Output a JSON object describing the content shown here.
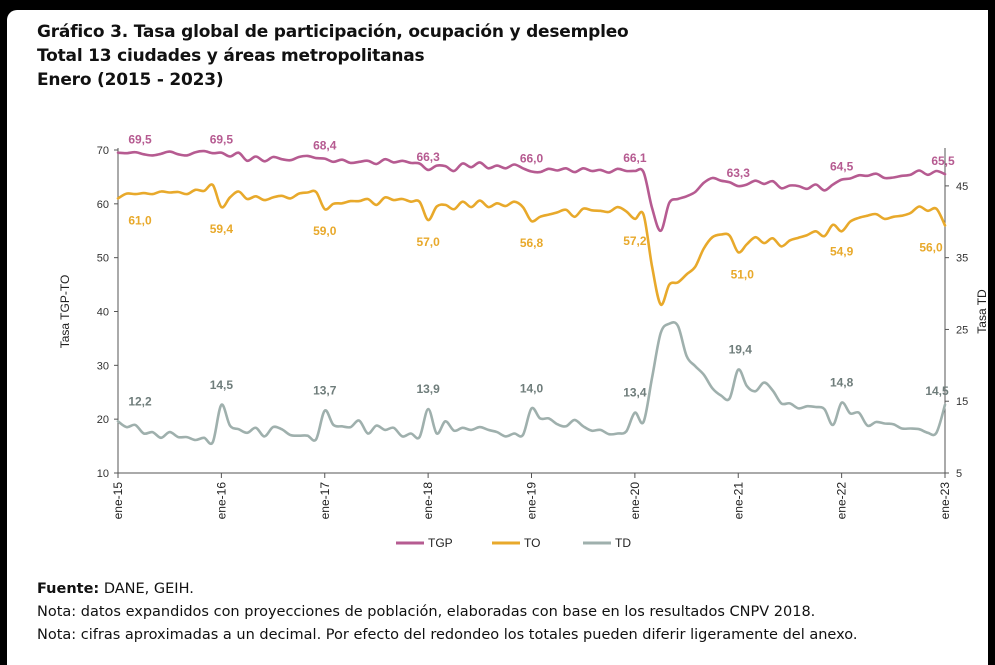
{
  "header": {
    "title_line1": "Gráfico 3. Tasa global de participación, ocupación y desempleo",
    "title_line2": "Total 13 ciudades y áreas metropolitanas",
    "title_line3": "Enero (2015 - 2023)"
  },
  "footer": {
    "source_label": "Fuente:",
    "source_value": " DANE, GEIH.",
    "note1": "Nota: datos expandidos con proyecciones de población, elaboradas con base en los resultados CNPV 2018.",
    "note2": "Nota: cifras aproximadas a un decimal. Por efecto del redondeo los totales pueden diferir ligeramente del anexo."
  },
  "colors": {
    "TGP": "#b65b91",
    "TO": "#e8a92b",
    "TD": "#9fb0ad"
  },
  "chart_data": {
    "type": "line",
    "x_categories": [
      "ene-15",
      "ene-16",
      "ene-17",
      "ene-18",
      "ene-19",
      "ene-20",
      "ene-21",
      "ene-22",
      "ene-23"
    ],
    "y_left_label": "Tasa TGP-TO",
    "y_left_lim": [
      10,
      70
    ],
    "y_left_ticks": [
      "10",
      "20",
      "30",
      "40",
      "50",
      "60",
      "70"
    ],
    "y_right_label": "Tasa TD",
    "y_right_lim": [
      5,
      50
    ],
    "y_right_ticks": [
      "5",
      "15",
      "25",
      "35",
      "45"
    ],
    "legend_position": "bottom",
    "series": [
      {
        "name": "TGP",
        "axis": "left",
        "values": [
          69.5,
          69.4,
          69.6,
          69.2,
          69.0,
          69.3,
          69.7,
          69.2,
          69.0,
          69.6,
          69.8,
          69.4,
          69.5,
          68.8,
          69.5,
          68.0,
          68.8,
          67.9,
          68.7,
          68.3,
          68.1,
          68.7,
          68.9,
          68.5,
          68.4,
          67.8,
          68.2,
          67.6,
          67.8,
          68.0,
          67.4,
          68.3,
          67.7,
          68.0,
          67.6,
          67.5,
          66.3,
          67.1,
          67.0,
          66.1,
          67.5,
          66.8,
          67.7,
          66.6,
          67.1,
          66.6,
          67.3,
          66.6,
          66.0,
          65.9,
          66.5,
          66.2,
          66.6,
          65.9,
          66.6,
          66.1,
          66.3,
          65.8,
          66.5,
          66.1,
          66.1,
          65.9,
          59.2,
          55.0,
          60.2,
          60.9,
          61.4,
          62.2,
          63.9,
          64.8,
          64.3,
          64.0,
          63.3,
          63.6,
          64.3,
          63.7,
          64.2,
          62.9,
          63.4,
          63.3,
          62.8,
          63.6,
          62.5,
          63.6,
          64.5,
          64.7,
          65.3,
          65.2,
          65.6,
          64.8,
          64.9,
          65.2,
          65.4,
          66.2,
          65.4,
          66.1,
          65.5
        ],
        "labels": [
          "69,5",
          "69,5",
          "68,4",
          "66,3",
          "66,0",
          "66,1",
          "63,3",
          "64,5",
          "65,5"
        ]
      },
      {
        "name": "TO",
        "axis": "left",
        "values": [
          61.0,
          61.9,
          61.8,
          62.0,
          61.8,
          62.3,
          62.1,
          62.2,
          61.8,
          62.6,
          62.4,
          63.5,
          59.4,
          61.2,
          62.3,
          60.9,
          61.4,
          60.7,
          61.2,
          61.5,
          61.0,
          61.9,
          62.1,
          62.2,
          59.0,
          60.0,
          60.1,
          60.5,
          60.5,
          60.9,
          59.8,
          61.2,
          60.7,
          60.9,
          60.4,
          60.4,
          57.0,
          59.5,
          59.8,
          59.0,
          60.4,
          59.4,
          60.6,
          59.4,
          60.1,
          59.6,
          60.4,
          59.4,
          56.8,
          57.6,
          58.0,
          58.4,
          58.9,
          57.6,
          59.1,
          58.8,
          58.7,
          58.5,
          59.4,
          58.6,
          57.2,
          58.0,
          48.3,
          41.3,
          45.0,
          45.4,
          46.9,
          48.3,
          51.7,
          53.8,
          54.3,
          54.1,
          51.0,
          52.5,
          53.8,
          52.7,
          53.6,
          52.1,
          53.2,
          53.7,
          54.2,
          54.9,
          54.0,
          56.1,
          54.9,
          56.7,
          57.4,
          57.8,
          58.1,
          57.2,
          57.6,
          57.8,
          58.3,
          59.5,
          58.7,
          59.1,
          56.0
        ],
        "labels": [
          "61,0",
          "59,4",
          "59,0",
          "57,0",
          "56,8",
          "57,2",
          "51,0",
          "54,9",
          "56,0"
        ]
      },
      {
        "name": "TD",
        "axis": "right",
        "values": [
          12.2,
          11.4,
          11.7,
          10.5,
          10.7,
          9.9,
          10.7,
          10.0,
          10.0,
          9.6,
          9.9,
          9.3,
          14.5,
          11.6,
          11.1,
          10.6,
          11.3,
          10.1,
          11.4,
          11.1,
          10.3,
          10.2,
          10.2,
          9.7,
          13.7,
          11.7,
          11.5,
          11.4,
          12.3,
          10.5,
          11.6,
          11.0,
          11.3,
          10.1,
          10.5,
          10.0,
          13.9,
          10.5,
          12.2,
          10.9,
          11.3,
          11.0,
          11.4,
          11.0,
          10.7,
          10.1,
          10.5,
          10.3,
          14.0,
          12.6,
          12.6,
          11.8,
          11.5,
          12.4,
          11.5,
          10.9,
          11.0,
          10.4,
          10.5,
          10.8,
          13.4,
          12.1,
          18.3,
          24.5,
          25.8,
          25.5,
          21.3,
          19.9,
          18.7,
          16.8,
          15.8,
          15.4,
          19.4,
          17.1,
          16.4,
          17.6,
          16.5,
          14.7,
          14.7,
          14.0,
          14.3,
          14.2,
          13.9,
          11.7,
          14.8,
          13.3,
          13.4,
          11.6,
          12.1,
          11.9,
          11.8,
          11.2,
          11.2,
          11.1,
          10.6,
          10.6,
          14.5
        ],
        "labels": [
          "12,2",
          "14,5",
          "13,7",
          "13,9",
          "14,0",
          "13,4",
          "19,4",
          "14,8",
          "14,5"
        ]
      }
    ]
  }
}
